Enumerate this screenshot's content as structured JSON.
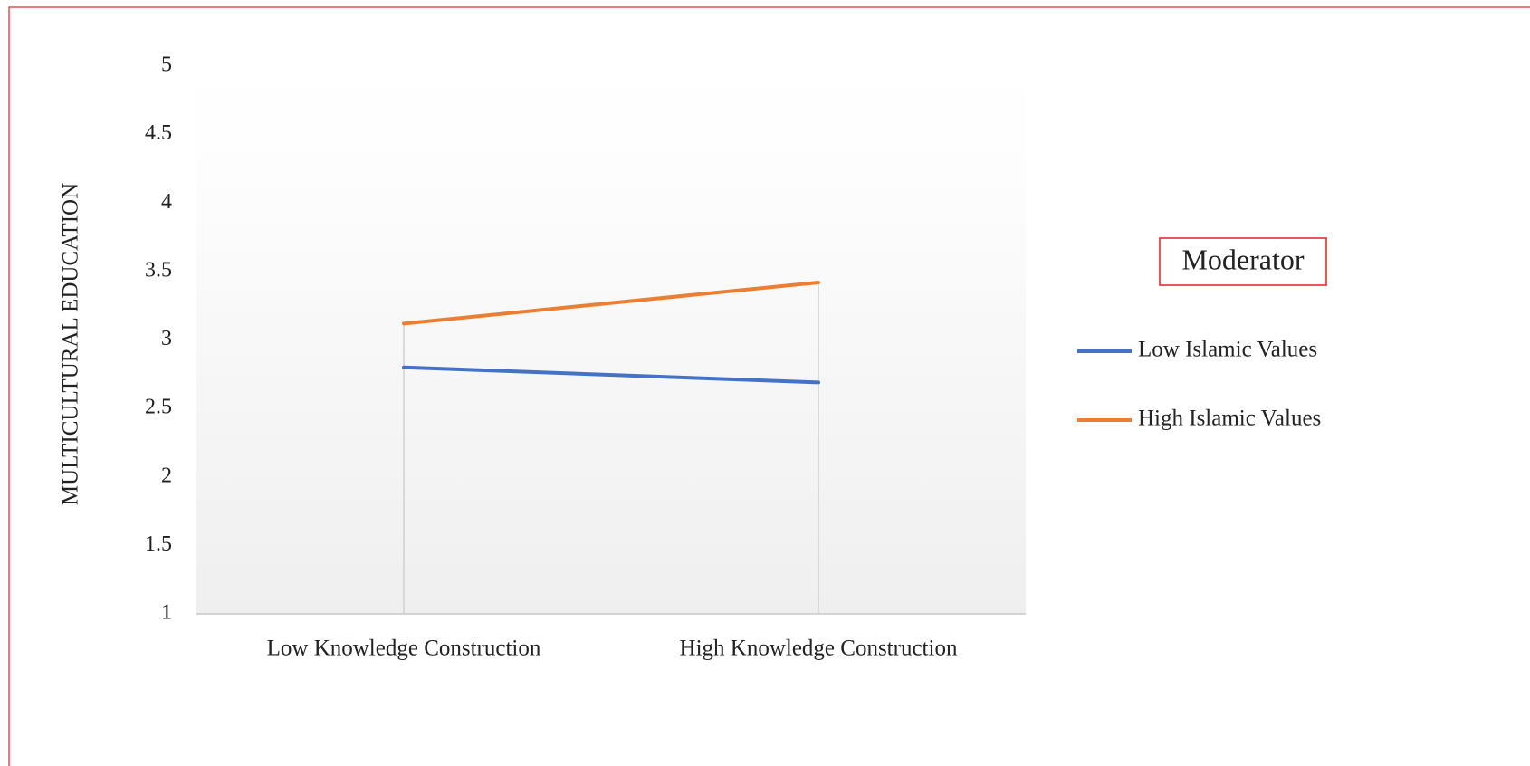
{
  "chart_data": {
    "type": "line",
    "y_label": "MULTICULTURAL EDUCATION",
    "legend_title": "Moderator",
    "categories": [
      "Low Knowledge Construction",
      "High Knowledge Construction"
    ],
    "series": [
      {
        "name": "Low Islamic Values",
        "color": "#4472c4",
        "values": [
          2.8,
          2.69
        ]
      },
      {
        "name": "High Islamic Values",
        "color": "#ed7d31",
        "values": [
          3.12,
          3.42
        ]
      }
    ],
    "ylim": [
      1,
      5
    ],
    "yticks": [
      1,
      1.5,
      2,
      2.5,
      3,
      3.5,
      4,
      4.5,
      5
    ],
    "drop_lines": true,
    "legend": "right"
  }
}
